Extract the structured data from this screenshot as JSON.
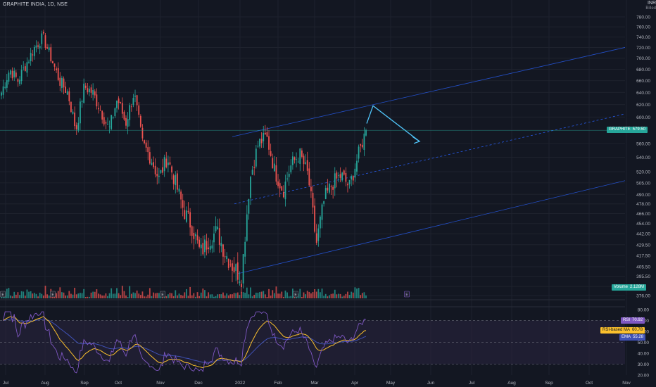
{
  "header": {
    "title": "GRAPHITE INDIA, 1D, NSE",
    "currency": "INR",
    "currency_sub": "Billed"
  },
  "tags": {
    "price": {
      "label": "GRAPHITE",
      "value": "579.50"
    },
    "volume": {
      "label": "Volume",
      "value": "2.128M"
    },
    "rsi": {
      "label": "RSI",
      "value": "70.92"
    },
    "rsi_ma": {
      "label": "RSI-based MA",
      "value": "60.78"
    },
    "ema": {
      "label": "EMA",
      "value": "55.28"
    }
  },
  "colors": {
    "up": "#26a69a",
    "down": "#ef5350",
    "channel": "#2962ff",
    "arrow": "#4fc3f7",
    "rsi": "#7e57c2",
    "rsi_ma": "#fbc02d",
    "ema": "#3f51b5",
    "band": "#2a2440"
  },
  "chart_data": [
    {
      "type": "candlestick",
      "title": "GRAPHITE INDIA, 1D, NSE",
      "y_ticks": [
        376.0,
        385.0,
        395.5,
        405.5,
        417.5,
        429.5,
        442.0,
        454.0,
        466.0,
        478.0,
        490.0,
        505.0,
        520.0,
        540.0,
        560.0,
        580.0,
        600.0,
        620.0,
        640.0,
        660.0,
        680.0,
        700.0,
        720.0,
        740.0,
        760.0,
        780.0
      ],
      "y_scale": "log",
      "x_ticks": [
        "Jul",
        "Aug",
        "Sep",
        "Oct",
        "Nov",
        "Dec",
        "2022",
        "Feb",
        "Mar",
        "Apr",
        "May",
        "Jun",
        "Jul",
        "Aug",
        "Sep",
        "Oct",
        "Nov"
      ],
      "last_price": 579.5,
      "series": [
        {
          "name": "anchors_close",
          "points": [
            [
              "Jul",
              640
            ],
            [
              "Jul",
              680
            ],
            [
              "Jul",
              660
            ],
            [
              "Jul",
              690
            ],
            [
              "Aug",
              720
            ],
            [
              "Aug",
              740
            ],
            [
              "Aug",
              700
            ],
            [
              "Aug",
              660
            ],
            [
              "Aug",
              640
            ],
            [
              "Sep",
              580
            ],
            [
              "Sep",
              650
            ],
            [
              "Sep",
              640
            ],
            [
              "Sep",
              610
            ],
            [
              "Oct",
              580
            ],
            [
              "Oct",
              630
            ],
            [
              "Oct",
              590
            ],
            [
              "Oct",
              640
            ],
            [
              "Oct",
              560
            ],
            [
              "Oct",
              540
            ],
            [
              "Nov",
              510
            ],
            [
              "Nov",
              540
            ],
            [
              "Nov",
              505
            ],
            [
              "Nov",
              470
            ],
            [
              "Nov",
              450
            ],
            [
              "Dec",
              420
            ],
            [
              "Dec",
              435
            ],
            [
              "Dec",
              445
            ],
            [
              "Dec",
              420
            ],
            [
              "Dec",
              405
            ],
            [
              "2022",
              395
            ],
            [
              "2022",
              510
            ],
            [
              "2022",
              560
            ],
            [
              "2022",
              570
            ],
            [
              "2022",
              520
            ],
            [
              "Feb",
              495
            ],
            [
              "Feb",
              530
            ],
            [
              "Feb",
              545
            ],
            [
              "Feb",
              515
            ],
            [
              "Mar",
              430
            ],
            [
              "Mar",
              485
            ],
            [
              "Mar",
              505
            ],
            [
              "Mar",
              515
            ],
            [
              "Apr",
              500
            ],
            [
              "Apr",
              540
            ],
            [
              "Apr",
              579.5
            ]
          ]
        }
      ],
      "drawings": {
        "channel": "ascending parallel channel with dashed midline",
        "arrow": "projection up to ~620 then down to ~565 in May"
      }
    },
    {
      "type": "bar",
      "title": "Volume",
      "last_value": "2.128M"
    },
    {
      "type": "line",
      "title": "RSI",
      "y_ticks": [
        20.0,
        30.0,
        40.0,
        50.0,
        60.0,
        70.0,
        80.0
      ],
      "ylim": [
        20,
        80
      ],
      "band": [
        30,
        70
      ],
      "series": [
        {
          "name": "RSI",
          "last": 70.92
        },
        {
          "name": "RSI-based MA",
          "last": 60.78
        },
        {
          "name": "EMA",
          "last": 55.28
        }
      ]
    }
  ]
}
